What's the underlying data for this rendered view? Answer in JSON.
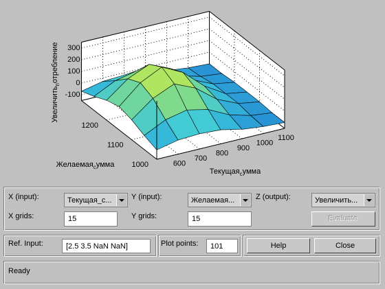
{
  "plot": {
    "type": "surface",
    "x_label": [
      "Текущая",
      "с",
      "умма"
    ],
    "y_label": [
      "Желаемая",
      "с",
      "умма"
    ],
    "z_label": [
      "Увеличить",
      "п",
      "отребление"
    ],
    "x": [
      500,
      600,
      700,
      800,
      900,
      1000,
      1100
    ],
    "y": [
      1000,
      1050,
      1100,
      1150,
      1200,
      1250,
      1300
    ],
    "z": [
      [
        -70,
        -30,
        -20,
        -30,
        -70,
        -90,
        -100
      ],
      [
        -30,
        60,
        100,
        60,
        -30,
        -80,
        -100
      ],
      [
        20,
        160,
        240,
        160,
        20,
        -60,
        -90
      ],
      [
        50,
        210,
        300,
        210,
        50,
        -60,
        -90
      ],
      [
        20,
        160,
        240,
        160,
        20,
        -60,
        -90
      ],
      [
        -30,
        60,
        100,
        60,
        -30,
        -80,
        -100
      ],
      [
        -70,
        -30,
        -20,
        -30,
        -70,
        -90,
        -100
      ]
    ],
    "xlim": [
      500,
      1100
    ],
    "ylim": [
      1000,
      1300
    ],
    "zlim": [
      -150,
      350
    ],
    "xticks": [
      600,
      700,
      800,
      900,
      1000,
      1100
    ],
    "yticks": [
      1000,
      1100,
      1200
    ],
    "zticks": [
      -100,
      0,
      100,
      200,
      300
    ],
    "grid": true
  },
  "controls": {
    "x_input_label": "X (input):",
    "x_input_value": "Текущая_с...",
    "y_input_label": "Y (input):",
    "y_input_value": "Желаемая...",
    "z_output_label": "Z (output):",
    "z_output_value": "Увеличить...",
    "x_grids_label": "X grids:",
    "x_grids_value": "15",
    "y_grids_label": "Y grids:",
    "y_grids_value": "15",
    "evaluate": "Evaluate",
    "ref_input_label": "Ref. Input:",
    "ref_input_value": "[2.5 3.5 NaN NaN]",
    "plot_points_label": "Plot points:",
    "plot_points_value": "101",
    "help": "Help",
    "close": "Close"
  },
  "status": "Ready"
}
